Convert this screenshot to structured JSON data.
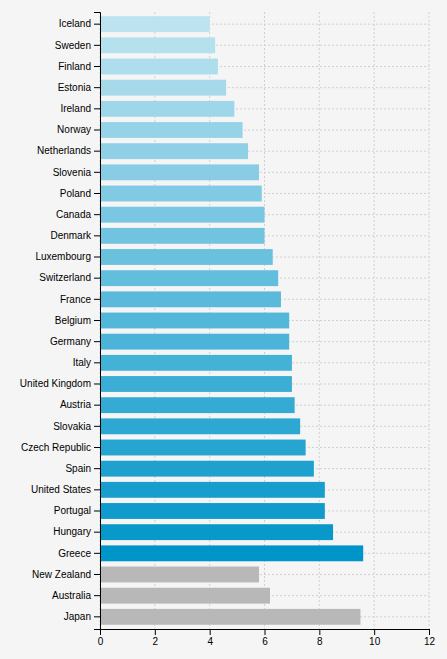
{
  "chart_data": {
    "type": "bar",
    "orientation": "horizontal",
    "categories": [
      "Iceland",
      "Sweden",
      "Finland",
      "Estonia",
      "Ireland",
      "Norway",
      "Netherlands",
      "Slovenia",
      "Poland",
      "Canada",
      "Denmark",
      "Luxembourg",
      "Switzerland",
      "France",
      "Belgium",
      "Germany",
      "Italy",
      "United Kingdom",
      "Austria",
      "Slovakia",
      "Czech Republic",
      "Spain",
      "United States",
      "Portugal",
      "Hungary",
      "Greece",
      "New Zealand",
      "Australia",
      "Japan"
    ],
    "values": [
      4.0,
      4.2,
      4.3,
      4.6,
      4.9,
      5.2,
      5.4,
      5.8,
      5.9,
      6.0,
      6.0,
      6.3,
      6.5,
      6.6,
      6.9,
      6.9,
      7.0,
      7.0,
      7.1,
      7.3,
      7.5,
      7.8,
      8.2,
      8.2,
      8.5,
      9.6,
      5.8,
      6.2,
      9.5
    ],
    "colors": [
      "#bde3f0",
      "#b5e0ee",
      "#aedded",
      "#a6daeb",
      "#9fd7ea",
      "#97d3e8",
      "#90d0e6",
      "#88cde5",
      "#81cae3",
      "#79c7e2",
      "#71c4e0",
      "#6ac1de",
      "#62bedd",
      "#5bbadb",
      "#53b7da",
      "#4cb4d8",
      "#44b1d6",
      "#3caed5",
      "#35abd3",
      "#2da8d2",
      "#26a5d0",
      "#1ea1ce",
      "#179ecd",
      "#0f9bcb",
      "#0898ca",
      "#0095c8",
      "#b8b8b8",
      "#b8b8b8",
      "#b8b8b8"
    ],
    "xlim": [
      0,
      12
    ],
    "xticks": [
      0,
      2,
      4,
      6,
      8,
      10,
      12
    ],
    "grid": true
  }
}
